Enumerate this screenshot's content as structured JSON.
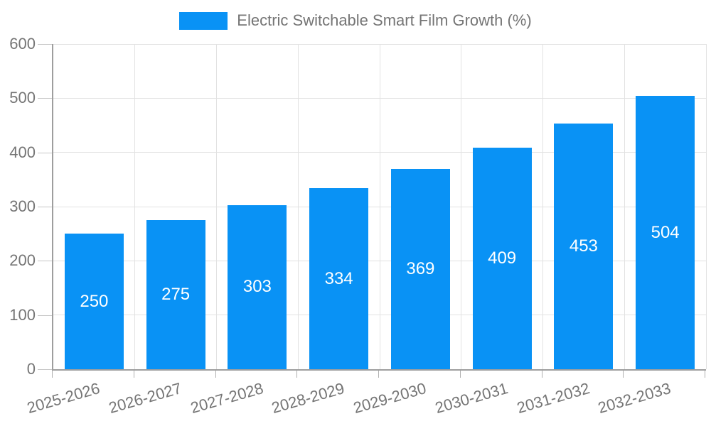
{
  "chart_data": {
    "type": "bar",
    "title": "",
    "legend_label": "Electric Switchable Smart Film Growth (%)",
    "legend_position": "top",
    "categories": [
      "2025-2026",
      "2026-2027",
      "2027-2028",
      "2028-2029",
      "2029-2030",
      "2030-2031",
      "2031-2032",
      "2032-2033"
    ],
    "values": [
      250,
      275,
      303,
      334,
      369,
      409,
      453,
      504
    ],
    "xlabel": "",
    "ylabel": "",
    "ylim": [
      0,
      600
    ],
    "ytick_step": 100,
    "ytick_labels": [
      "0",
      "100",
      "200",
      "300",
      "400",
      "500",
      "600"
    ],
    "grid": true,
    "value_labels_shown": true,
    "colors": {
      "bar": "#0992f5",
      "value_text": "#ffffff",
      "axis_line": "#9e9e9e",
      "gridline": "#e2e2e2",
      "tick_text": "#757575",
      "background": "#ffffff"
    }
  }
}
